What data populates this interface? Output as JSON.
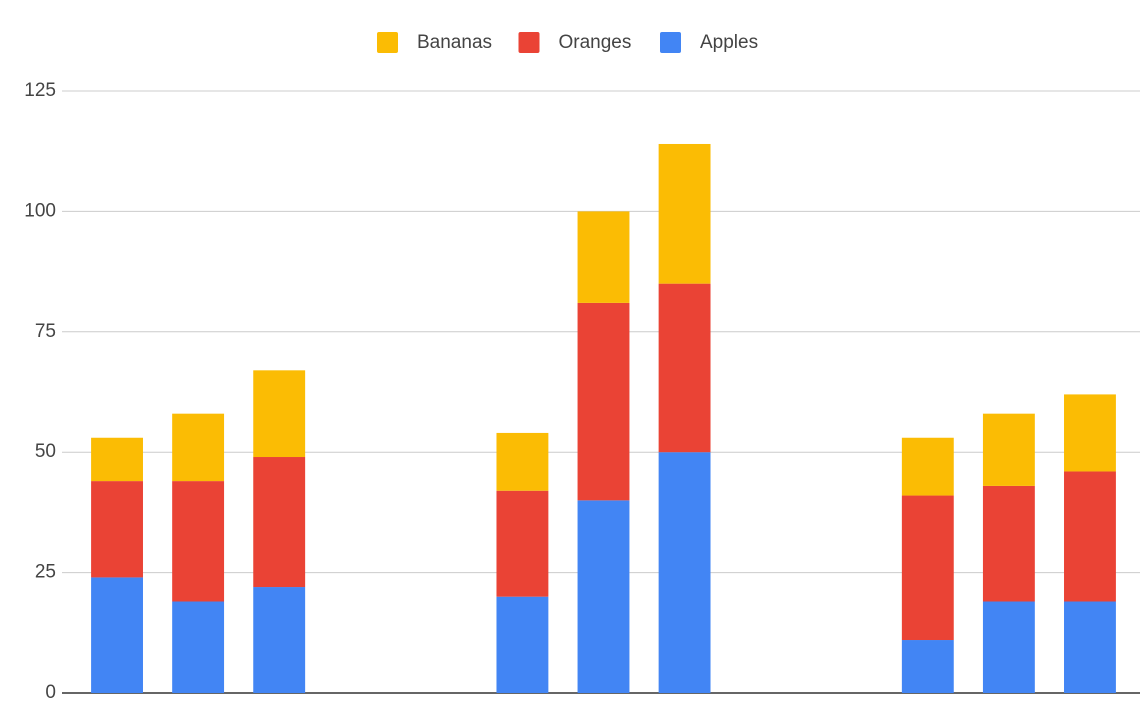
{
  "chart_data": {
    "type": "stacked_bar",
    "categories": [
      null,
      null,
      null,
      null,
      null,
      null,
      null,
      null,
      null,
      null,
      null,
      null,
      null
    ],
    "series": [
      {
        "name": "Apples",
        "color": "#4285f4",
        "values": [
          24,
          19,
          22,
          null,
          null,
          20,
          40,
          50,
          null,
          null,
          11,
          19,
          19
        ]
      },
      {
        "name": "Oranges",
        "color": "#ea4335",
        "values": [
          20,
          25,
          27,
          null,
          null,
          22,
          41,
          35,
          null,
          null,
          30,
          24,
          27
        ]
      },
      {
        "name": "Bananas",
        "color": "#fbbc04",
        "values": [
          9,
          14,
          18,
          null,
          null,
          12,
          19,
          29,
          null,
          null,
          12,
          15,
          16
        ]
      }
    ],
    "ylim": [
      0,
      125
    ],
    "yticks": [
      0,
      25,
      50,
      75,
      100,
      125
    ],
    "grid": true,
    "legend": "top"
  }
}
